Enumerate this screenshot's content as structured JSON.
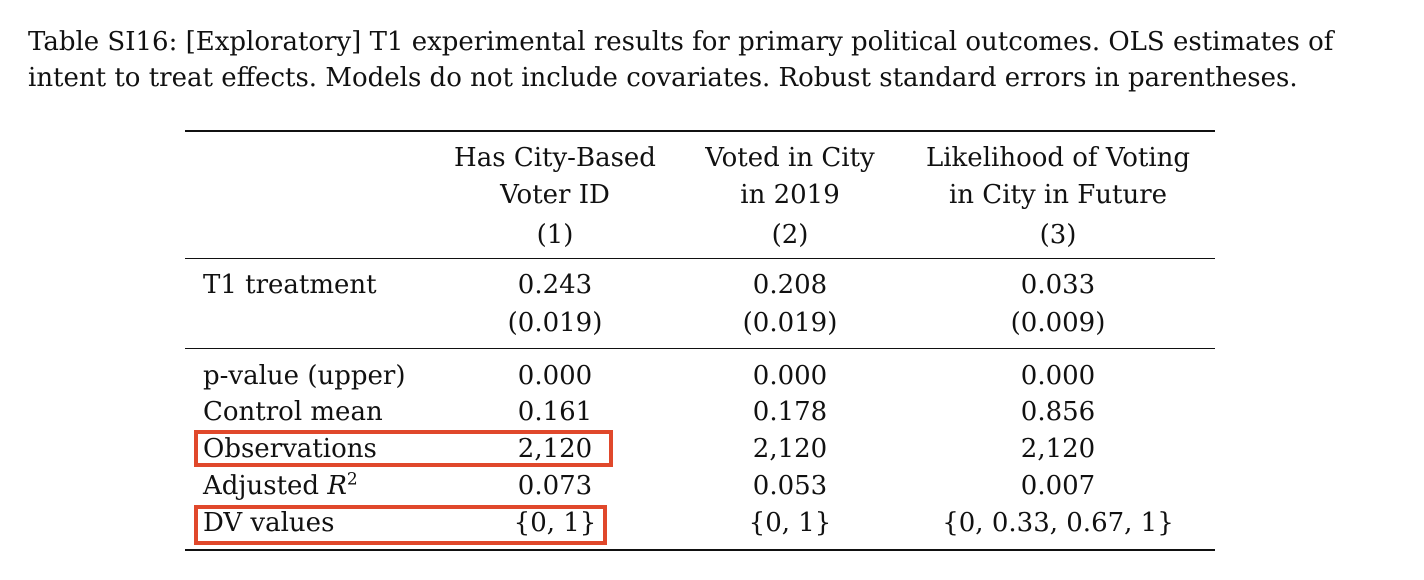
{
  "caption": {
    "line1": "Table SI16: [Exploratory] T1 experimental results for primary political outcomes. OLS estimates of",
    "line2": "intent to treat effects. Models do not include covariates. Robust standard errors in parentheses."
  },
  "header": {
    "col1": [
      "Has City-Based",
      "Voter ID",
      "(1)"
    ],
    "col2": [
      "Voted in City",
      "in 2019",
      "(2)"
    ],
    "col3": [
      "Likelihood of Voting",
      "in City in Future",
      "(3)"
    ]
  },
  "treatment": {
    "label": "T1 treatment",
    "estimates": [
      "0.243",
      "0.208",
      "0.033"
    ],
    "se": [
      "(0.019)",
      "(0.019)",
      "(0.009)"
    ]
  },
  "stats": [
    {
      "label": "p-value (upper)",
      "values": [
        "0.000",
        "0.000",
        "0.000"
      ]
    },
    {
      "label": "Control mean",
      "values": [
        "0.161",
        "0.178",
        "0.856"
      ]
    },
    {
      "label": "Observations",
      "values": [
        "2,120",
        "2,120",
        "2,120"
      ]
    },
    {
      "label_prefix": "Adjusted ",
      "label_var": "R",
      "label_sup": "2",
      "values": [
        "0.073",
        "0.053",
        "0.007"
      ]
    },
    {
      "label": "DV values",
      "values": [
        "{0, 1}",
        "{0, 1}",
        "{0, 0.33, 0.67, 1}"
      ]
    }
  ],
  "highlight_color": "#e0482b"
}
